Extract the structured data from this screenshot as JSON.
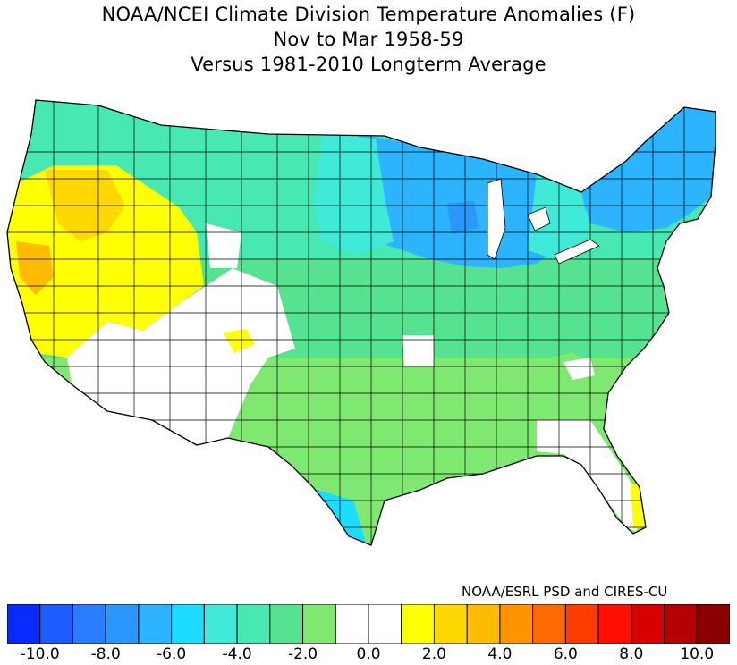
{
  "header": {
    "title_line1": "NOAA/NCEI Climate Division Temperature Anomalies (F)",
    "title_line2": "Nov to Mar 1958-59",
    "title_line3": "Versus 1981-2010 Longterm Average"
  },
  "credit": "NOAA/ESRL PSD and CIRES-CU",
  "colorbar": {
    "colors": [
      "#0a2bff",
      "#1e5cff",
      "#2b7dff",
      "#2a97ff",
      "#2cb4ff",
      "#1cdcff",
      "#3fead8",
      "#47e8b2",
      "#55e391",
      "#7fe870",
      "#ffffff",
      "#ffffff",
      "#ffff00",
      "#ffd800",
      "#ffbb00",
      "#ff9400",
      "#ff6a00",
      "#ff3c00",
      "#ff1000",
      "#d80000",
      "#b40000",
      "#8a0000"
    ],
    "tick_labels": [
      "-10.0",
      "-8.0",
      "-6.0",
      "-4.0",
      "-2.0",
      "0.0",
      "2.0",
      "4.0",
      "6.0",
      "8.0",
      "10.0"
    ]
  }
}
